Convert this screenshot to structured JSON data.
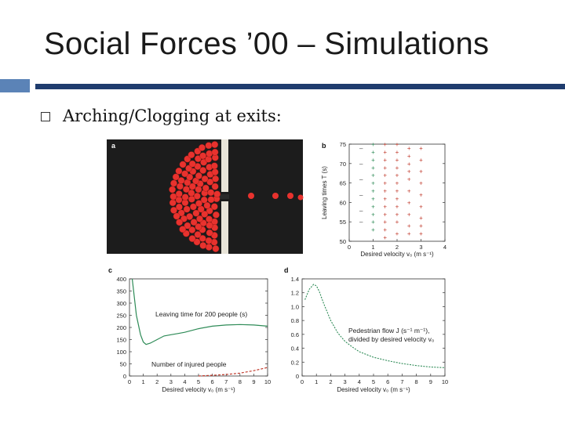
{
  "slide": {
    "title": "Social Forces ’00 – Simulations",
    "bullet": "Arching/Clogging at exits:"
  },
  "colors": {
    "accent_block": "#5b83b7",
    "accent_line": "#1f3c6e",
    "pedestrian": "#e8322e",
    "green_series": "#2e8b57",
    "red_series": "#c0392b"
  },
  "figure": {
    "panel_a": {
      "label": "a"
    },
    "panel_b": {
      "label": "b",
      "ylabel": "Leaving times T (s)",
      "xlabel": "Desired velocity v₀ (m s⁻¹)",
      "yticks": [
        "50",
        "55",
        "60",
        "65",
        "70",
        "75"
      ],
      "xticks": [
        "0",
        "1",
        "2",
        "3",
        "4"
      ]
    },
    "panel_c": {
      "label": "c",
      "annotation1": "Leaving time for 200 people (s)",
      "annotation2": "Number of injured people",
      "xlabel": "Desired velocity v₀ (m s⁻¹)",
      "yticks": [
        "0",
        "50",
        "100",
        "150",
        "200",
        "250",
        "300",
        "350",
        "400"
      ],
      "xticks": [
        "0",
        "1",
        "2",
        "3",
        "4",
        "5",
        "6",
        "7",
        "8",
        "9",
        "10"
      ]
    },
    "panel_d": {
      "label": "d",
      "annotation1": "Pedestrian flow J (s⁻¹ m⁻¹),",
      "annotation2": "divided by desired velocity v₀",
      "xlabel": "Desired velocity v₀ (m s⁻¹)",
      "yticks": [
        "0",
        "0.2",
        "0.4",
        "0.6",
        "0.8",
        "1.0",
        "1.2",
        "1.4"
      ],
      "xticks": [
        "0",
        "1",
        "2",
        "3",
        "4",
        "5",
        "6",
        "7",
        "8",
        "9",
        "10"
      ]
    }
  },
  "chart_data": [
    {
      "type": "scatter",
      "panel": "b",
      "xlim": [
        0,
        4
      ],
      "ylim": [
        50,
        75
      ],
      "series": [
        {
          "x": [
            0.5,
            0.5,
            0.5,
            0.5,
            0.5,
            0.5
          ],
          "y": [
            74,
            70,
            66,
            62,
            58,
            55
          ]
        },
        {
          "x": [
            1.0,
            1.0,
            1.0,
            1.0,
            1.0,
            1.0,
            1.0,
            1.0,
            1.0,
            1.0,
            1.0,
            1.0
          ],
          "y": [
            75,
            73,
            71,
            69,
            67,
            65,
            63,
            61,
            59,
            57,
            55,
            53
          ]
        },
        {
          "x": [
            1.5,
            1.5,
            1.5,
            1.5,
            1.5,
            1.5,
            1.5,
            1.5,
            1.5,
            1.5,
            1.5,
            1.5,
            1.5,
            2.0,
            2.0,
            2.0,
            2.0,
            2.0,
            2.0,
            2.0,
            2.0,
            2.0,
            2.0,
            2.0,
            2.0,
            2.5,
            2.5,
            2.5,
            2.5,
            2.5,
            2.5,
            2.5,
            2.5,
            2.5,
            2.5,
            3.0,
            3.0,
            3.0,
            3.0,
            3.0,
            3.0,
            3.0,
            3.0,
            3.0
          ],
          "y": [
            75,
            73,
            71,
            69,
            67,
            65,
            63,
            61,
            59,
            57,
            55,
            53,
            51,
            75,
            73,
            71,
            69,
            67,
            65,
            63,
            61,
            59,
            57,
            55,
            52,
            74,
            72,
            70,
            68,
            66,
            63,
            60,
            57,
            54,
            52,
            74,
            71,
            68,
            65,
            62,
            59,
            56,
            54,
            52
          ]
        }
      ]
    },
    {
      "type": "line",
      "panel": "c",
      "xlim": [
        0,
        10
      ],
      "ylim": [
        0,
        400
      ],
      "series": [
        {
          "x": [
            0.2,
            0.5,
            0.8,
            1.0,
            1.2,
            1.5,
            2.0,
            2.5,
            3.0,
            3.5,
            4.0,
            5.0,
            6.0,
            7.0,
            8.0,
            9.0,
            10.0
          ],
          "y": [
            400,
            250,
            170,
            140,
            130,
            135,
            150,
            165,
            170,
            175,
            180,
            195,
            205,
            210,
            212,
            210,
            205
          ]
        },
        {
          "x": [
            5.0,
            6.0,
            7.0,
            8.0,
            9.0,
            10.0
          ],
          "y": [
            0,
            3,
            6,
            12,
            22,
            35
          ]
        }
      ]
    },
    {
      "type": "line",
      "panel": "d",
      "xlim": [
        0,
        10
      ],
      "ylim": [
        0,
        1.4
      ],
      "series": [
        {
          "x": [
            0.2,
            0.5,
            0.8,
            1.0,
            1.2,
            1.5,
            2.0,
            2.5,
            3.0,
            3.5,
            4.0,
            5.0,
            6.0,
            7.0,
            8.0,
            9.0,
            10.0
          ],
          "y": [
            1.1,
            1.25,
            1.32,
            1.3,
            1.22,
            1.05,
            0.8,
            0.62,
            0.5,
            0.42,
            0.35,
            0.27,
            0.22,
            0.18,
            0.15,
            0.13,
            0.12
          ]
        }
      ]
    }
  ]
}
